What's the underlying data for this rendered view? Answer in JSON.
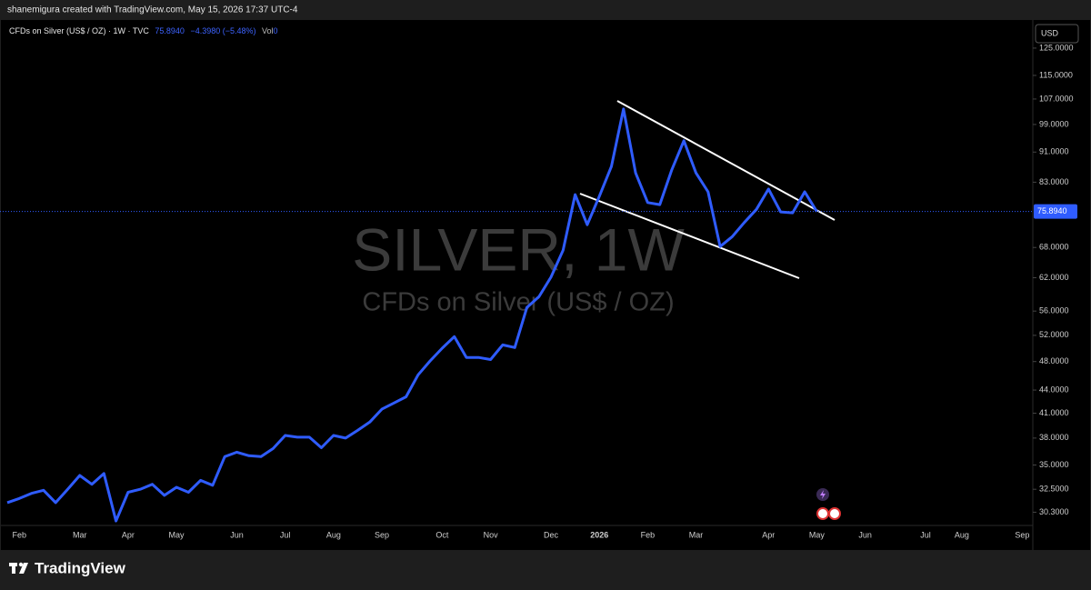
{
  "header": {
    "attribution": "shanemigura created with TradingView.com, May 15, 2026 17:37 UTC-4"
  },
  "legend": {
    "symbol": "CFDs on Silver (US$ / OZ) · 1W · TVC",
    "price": "75.8940",
    "change": "−4.3980 (−5.48%)",
    "volume_label": "Vol",
    "volume": "0"
  },
  "currency": "USD",
  "footer": {
    "brand": "TradingView"
  },
  "chart_data": {
    "type": "line",
    "title": "SILVER, 1W",
    "subtitle": "CFDs on Silver (US$ / OZ)",
    "log_scale": true,
    "grid": false,
    "categories": [
      null,
      "Feb",
      null,
      null,
      null,
      null,
      "Mar",
      null,
      null,
      null,
      "Apr",
      null,
      null,
      null,
      "May",
      null,
      null,
      null,
      null,
      "Jun",
      null,
      null,
      null,
      "Jul",
      null,
      null,
      null,
      "Aug",
      null,
      null,
      null,
      "Sep",
      null,
      null,
      null,
      null,
      "Oct",
      null,
      null,
      null,
      "Nov",
      null,
      null,
      null,
      null,
      "Dec",
      null,
      null,
      null,
      "2026",
      null,
      null,
      null,
      "Feb",
      null,
      null,
      null,
      "Mar",
      null,
      null,
      null,
      null,
      null,
      "Apr",
      null,
      null,
      null,
      "May",
      null,
      null,
      null,
      "Jun",
      null,
      null,
      null,
      null,
      "Jul",
      null,
      null,
      "Aug",
      null,
      null,
      null,
      null,
      "Sep"
    ],
    "series": [
      {
        "name": "SILVER",
        "color": "#2f5cff",
        "values": [
          31.2,
          31.6,
          32.1,
          32.4,
          31.2,
          32.5,
          33.9,
          33.0,
          34.1,
          29.5,
          32.2,
          32.5,
          33.0,
          31.9,
          32.7,
          32.2,
          33.4,
          32.9,
          35.9,
          36.4,
          36.0,
          35.9,
          36.8,
          38.3,
          38.1,
          38.1,
          36.9,
          38.3,
          38.0,
          38.9,
          39.9,
          41.5,
          42.3,
          43.1,
          46.1,
          48.1,
          50.0,
          51.8,
          48.6,
          48.6,
          48.3,
          50.5,
          50.1,
          56.6,
          58.5,
          62.1,
          67.4,
          79.9,
          72.9,
          79.5,
          87.1,
          103.8,
          85.4,
          78.0,
          77.5,
          86.2,
          94.2,
          85.4,
          80.6,
          68.2,
          70.3,
          73.4,
          76.4,
          81.3,
          75.8,
          75.6,
          80.6,
          75.894,
          null,
          null,
          null,
          null,
          null,
          null,
          null,
          null,
          null,
          null,
          null,
          null,
          null,
          null,
          null,
          null,
          null
        ]
      }
    ],
    "ylim": [
      29.1,
      136.2
    ],
    "yticks": [
      {
        "value": 125,
        "label": "125.0000"
      },
      {
        "value": 115,
        "label": "115.0000"
      },
      {
        "value": 107,
        "label": "107.0000"
      },
      {
        "value": 99,
        "label": "99.0000"
      },
      {
        "value": 91,
        "label": "91.0000"
      },
      {
        "value": 83,
        "label": "83.0000"
      },
      {
        "value": 68,
        "label": "68.0000"
      },
      {
        "value": 62,
        "label": "62.0000"
      },
      {
        "value": 56,
        "label": "56.0000"
      },
      {
        "value": 52,
        "label": "52.0000"
      },
      {
        "value": 48,
        "label": "48.0000"
      },
      {
        "value": 44,
        "label": "44.0000"
      },
      {
        "value": 41,
        "label": "41.0000"
      },
      {
        "value": 38,
        "label": "38.0000"
      },
      {
        "value": 35,
        "label": "35.0000"
      },
      {
        "value": 32.5,
        "label": "32.5000"
      },
      {
        "value": 30.3,
        "label": "30.3000"
      }
    ],
    "current_price": {
      "value": 75.894,
      "label": "75.8940",
      "color": "#2f5cff"
    }
  }
}
